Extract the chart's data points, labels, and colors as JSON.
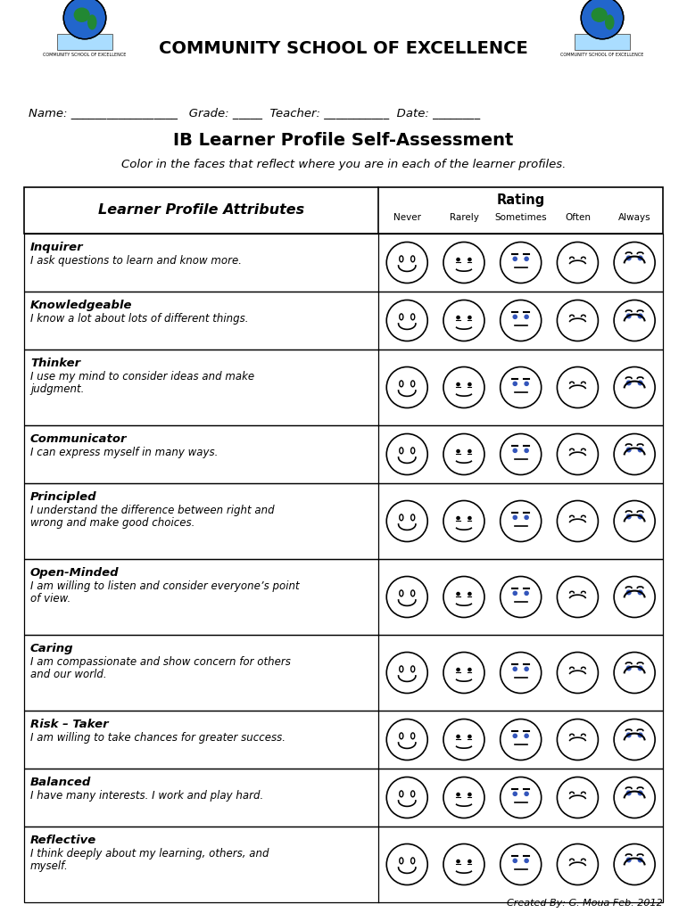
{
  "title": "IB Learner Profile Self-Assessment",
  "school_name": "COMMUNITY SCHOOL OF EXCELLENCE",
  "subtitle": "Color in the faces that reflect where you are in each of the learner profiles.",
  "header_left": "Learner Profile Attributes",
  "header_right": "Rating",
  "rating_labels": [
    "Never",
    "Rarely",
    "Sometimes",
    "Often",
    "Always"
  ],
  "name_line": "Name: _________________   Grade: _____  Teacher: ___________  Date: ________",
  "footer": "Created By: G. Moua Feb. 2012",
  "attributes": [
    {
      "name": "Inquirer",
      "desc": "I ask questions to learn and know more.",
      "lines": 1
    },
    {
      "name": "Knowledgeable",
      "desc": "I know a lot about lots of different things.",
      "lines": 1
    },
    {
      "name": "Thinker",
      "desc": "I use my mind to consider ideas and make\njudgment.",
      "lines": 2
    },
    {
      "name": "Communicator",
      "desc": "I can express myself in many ways.",
      "lines": 1
    },
    {
      "name": "Principled",
      "desc": "I understand the difference between right and\nwrong and make good choices.",
      "lines": 2
    },
    {
      "name": "Open-Minded",
      "desc": "I am willing to listen and consider everyone’s point\nof view.",
      "lines": 2
    },
    {
      "name": "Caring",
      "desc": "I am compassionate and show concern for others\nand our world.",
      "lines": 2
    },
    {
      "name": "Risk – Taker",
      "desc": "I am willing to take chances for greater success.",
      "lines": 1
    },
    {
      "name": "Balanced",
      "desc": "I have many interests. I work and play hard.",
      "lines": 1
    },
    {
      "name": "Reflective",
      "desc": "I think deeply about my learning, others, and\nmyself.",
      "lines": 2
    }
  ],
  "eye_blue": "#3355bb",
  "bg_color": "white",
  "fig_width": 7.7,
  "fig_height": 10.24,
  "dpi": 100
}
